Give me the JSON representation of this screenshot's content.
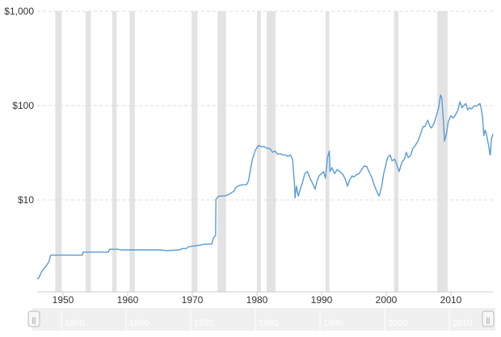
{
  "colors": {
    "line": "#5b9bd5",
    "recession_band": "#e3e3e3",
    "grid": "#dddddd",
    "navigator_bg": "#f0f0f0",
    "navigator_handle": "#f7f7f7"
  },
  "chart_data": {
    "type": "line",
    "title": "",
    "xlabel": "",
    "ylabel": "",
    "y_scale": "log",
    "ylim": [
      1.4,
      1000
    ],
    "xlim": [
      1946.0,
      2016.5
    ],
    "y_ticks": [
      {
        "value": 10,
        "label": "$10"
      },
      {
        "value": 100,
        "label": "$100"
      },
      {
        "value": 1000,
        "label": "$1,000"
      }
    ],
    "x_ticks": [
      {
        "value": 1950,
        "label": "1950"
      },
      {
        "value": 1960,
        "label": "1960"
      },
      {
        "value": 1970,
        "label": "1970"
      },
      {
        "value": 1980,
        "label": "1980"
      },
      {
        "value": 1990,
        "label": "1990"
      },
      {
        "value": 2000,
        "label": "2000"
      },
      {
        "value": 2010,
        "label": "2010"
      }
    ],
    "grid": "horizontal dashed",
    "recession_bands": [
      [
        1948.8,
        1949.8
      ],
      [
        1953.5,
        1954.3
      ],
      [
        1957.6,
        1958.3
      ],
      [
        1960.3,
        1961.1
      ],
      [
        1969.9,
        1970.8
      ],
      [
        1973.9,
        1975.2
      ],
      [
        1980.0,
        1980.6
      ],
      [
        1981.5,
        1982.9
      ],
      [
        1990.6,
        1991.2
      ],
      [
        2001.2,
        2001.9
      ],
      [
        2007.9,
        2009.5
      ]
    ],
    "series": [
      {
        "values": [
          [
            1946.0,
            1.45
          ],
          [
            1946.3,
            1.5
          ],
          [
            1946.6,
            1.7
          ],
          [
            1947.0,
            1.85
          ],
          [
            1947.4,
            2.0
          ],
          [
            1947.8,
            2.2
          ],
          [
            1948.1,
            2.6
          ],
          [
            1949.0,
            2.6
          ],
          [
            1953.0,
            2.6
          ],
          [
            1953.1,
            2.8
          ],
          [
            1956.0,
            2.8
          ],
          [
            1957.0,
            2.8
          ],
          [
            1957.2,
            3.0
          ],
          [
            1958.5,
            3.0
          ],
          [
            1959.0,
            2.95
          ],
          [
            1962.0,
            2.95
          ],
          [
            1965.0,
            2.95
          ],
          [
            1966.0,
            2.9
          ],
          [
            1968.0,
            2.95
          ],
          [
            1968.5,
            3.05
          ],
          [
            1969.0,
            3.05
          ],
          [
            1969.5,
            3.2
          ],
          [
            1971.0,
            3.3
          ],
          [
            1972.0,
            3.4
          ],
          [
            1973.0,
            3.4
          ],
          [
            1973.3,
            4.0
          ],
          [
            1973.6,
            4.2
          ],
          [
            1973.65,
            10.1
          ],
          [
            1974.0,
            10.9
          ],
          [
            1974.5,
            11.0
          ],
          [
            1975.2,
            11.1
          ],
          [
            1975.8,
            11.6
          ],
          [
            1976.5,
            12.5
          ],
          [
            1976.7,
            13.5
          ],
          [
            1977.2,
            14.2
          ],
          [
            1977.8,
            14.5
          ],
          [
            1978.4,
            14.5
          ],
          [
            1978.7,
            16.0
          ],
          [
            1979.0,
            21.0
          ],
          [
            1979.3,
            27.0
          ],
          [
            1979.7,
            33.0
          ],
          [
            1980.0,
            36.0
          ],
          [
            1980.3,
            38.0
          ],
          [
            1980.7,
            36.5
          ],
          [
            1981.0,
            37.0
          ],
          [
            1981.3,
            36.0
          ],
          [
            1981.7,
            35.0
          ],
          [
            1982.0,
            35.0
          ],
          [
            1982.4,
            32.0
          ],
          [
            1982.8,
            33.0
          ],
          [
            1983.2,
            30.5
          ],
          [
            1983.6,
            31.0
          ],
          [
            1984.0,
            30.0
          ],
          [
            1984.4,
            30.0
          ],
          [
            1984.8,
            29.0
          ],
          [
            1985.2,
            30.0
          ],
          [
            1985.5,
            27.0
          ],
          [
            1985.8,
            15.0
          ],
          [
            1985.9,
            10.5
          ],
          [
            1986.1,
            14.0
          ],
          [
            1986.4,
            11.0
          ],
          [
            1986.7,
            13.0
          ],
          [
            1987.0,
            15.0
          ],
          [
            1987.4,
            19.0
          ],
          [
            1987.8,
            20.0
          ],
          [
            1988.2,
            17.0
          ],
          [
            1988.6,
            15.0
          ],
          [
            1989.0,
            13.0
          ],
          [
            1989.3,
            16.0
          ],
          [
            1989.6,
            18.0
          ],
          [
            1990.0,
            19.0
          ],
          [
            1990.3,
            20.0
          ],
          [
            1990.6,
            17.0
          ],
          [
            1990.9,
            28.0
          ],
          [
            1991.2,
            33.0
          ],
          [
            1991.3,
            20.0
          ],
          [
            1991.6,
            22.0
          ],
          [
            1992.0,
            19.0
          ],
          [
            1992.4,
            21.0
          ],
          [
            1992.8,
            20.0
          ],
          [
            1993.2,
            19.0
          ],
          [
            1993.6,
            17.0
          ],
          [
            1994.0,
            14.0
          ],
          [
            1994.3,
            16.0
          ],
          [
            1994.7,
            18.0
          ],
          [
            1995.0,
            17.5
          ],
          [
            1995.4,
            18.5
          ],
          [
            1995.8,
            19.0
          ],
          [
            1996.2,
            21.0
          ],
          [
            1996.6,
            23.0
          ],
          [
            1997.0,
            22.5
          ],
          [
            1997.4,
            19.5
          ],
          [
            1997.8,
            17.0
          ],
          [
            1998.2,
            14.0
          ],
          [
            1998.6,
            12.0
          ],
          [
            1998.9,
            11.0
          ],
          [
            1999.3,
            14.0
          ],
          [
            1999.6,
            19.0
          ],
          [
            1999.9,
            23.0
          ],
          [
            2000.2,
            28.0
          ],
          [
            2000.6,
            30.0
          ],
          [
            2000.9,
            26.0
          ],
          [
            2001.3,
            27.0
          ],
          [
            2001.7,
            23.0
          ],
          [
            2002.0,
            20.0
          ],
          [
            2002.4,
            25.0
          ],
          [
            2002.8,
            27.0
          ],
          [
            2003.1,
            32.0
          ],
          [
            2003.4,
            28.0
          ],
          [
            2003.8,
            30.0
          ],
          [
            2004.1,
            35.0
          ],
          [
            2004.5,
            38.0
          ],
          [
            2004.9,
            42.0
          ],
          [
            2005.3,
            50.0
          ],
          [
            2005.7,
            60.0
          ],
          [
            2006.0,
            60.0
          ],
          [
            2006.4,
            70.0
          ],
          [
            2006.8,
            60.0
          ],
          [
            2007.0,
            58.0
          ],
          [
            2007.4,
            65.0
          ],
          [
            2007.8,
            80.0
          ],
          [
            2008.1,
            95.0
          ],
          [
            2008.4,
            130.0
          ],
          [
            2008.6,
            120.0
          ],
          [
            2008.9,
            60.0
          ],
          [
            2009.0,
            42.0
          ],
          [
            2009.3,
            50.0
          ],
          [
            2009.6,
            68.0
          ],
          [
            2010.0,
            78.0
          ],
          [
            2010.4,
            74.0
          ],
          [
            2010.8,
            82.0
          ],
          [
            2011.1,
            90.0
          ],
          [
            2011.4,
            110.0
          ],
          [
            2011.7,
            95.0
          ],
          [
            2012.0,
            100.0
          ],
          [
            2012.3,
            105.0
          ],
          [
            2012.6,
            90.0
          ],
          [
            2012.9,
            95.0
          ],
          [
            2013.2,
            92.0
          ],
          [
            2013.6,
            100.0
          ],
          [
            2013.9,
            98.0
          ],
          [
            2014.2,
            102.0
          ],
          [
            2014.5,
            105.0
          ],
          [
            2014.7,
            92.0
          ],
          [
            2014.9,
            75.0
          ],
          [
            2015.1,
            48.0
          ],
          [
            2015.3,
            55.0
          ],
          [
            2015.5,
            50.0
          ],
          [
            2015.7,
            42.0
          ],
          [
            2015.9,
            36.0
          ],
          [
            2016.0,
            31.0
          ],
          [
            2016.1,
            30.0
          ],
          [
            2016.2,
            38.0
          ],
          [
            2016.3,
            45.0
          ],
          [
            2016.4,
            47.0
          ],
          [
            2016.5,
            50.0
          ]
        ]
      }
    ]
  },
  "navigator": {
    "x_ticks": [
      "1950",
      "1960",
      "1970",
      "1980",
      "1990",
      "2000",
      "2010"
    ],
    "left_handle_glyph": "||",
    "right_handle_glyph": "||"
  }
}
